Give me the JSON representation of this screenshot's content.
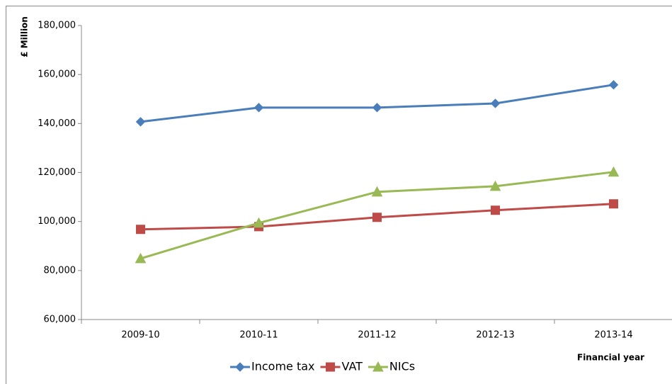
{
  "chart_data": {
    "type": "line",
    "y_label": "£ Million",
    "x_label": "Financial year",
    "categories": [
      "2009-10",
      "2010-11",
      "2011-12",
      "2012-13",
      "2013-14"
    ],
    "series": [
      {
        "name": "Income tax",
        "color": "#4a7ebb",
        "marker": "diamond",
        "values": [
          140700,
          146500,
          146500,
          148200,
          155800
        ]
      },
      {
        "name": "VAT",
        "color": "#be4b48",
        "marker": "square",
        "values": [
          96800,
          97900,
          101700,
          104600,
          107200
        ]
      },
      {
        "name": "NICs",
        "color": "#98b954",
        "marker": "triangle",
        "values": [
          84900,
          99400,
          112100,
          114400,
          120200
        ]
      }
    ],
    "ylim": [
      60000,
      180000
    ],
    "yticks": [
      {
        "value": 60000,
        "label": "60,000"
      },
      {
        "value": 80000,
        "label": "80,000"
      },
      {
        "value": 100000,
        "label": "100,000"
      },
      {
        "value": 120000,
        "label": "120,000"
      },
      {
        "value": 140000,
        "label": "140,000"
      },
      {
        "value": 160000,
        "label": "160,000"
      },
      {
        "value": 180000,
        "label": "180,000"
      }
    ],
    "grid": false,
    "legend": "bottom"
  }
}
